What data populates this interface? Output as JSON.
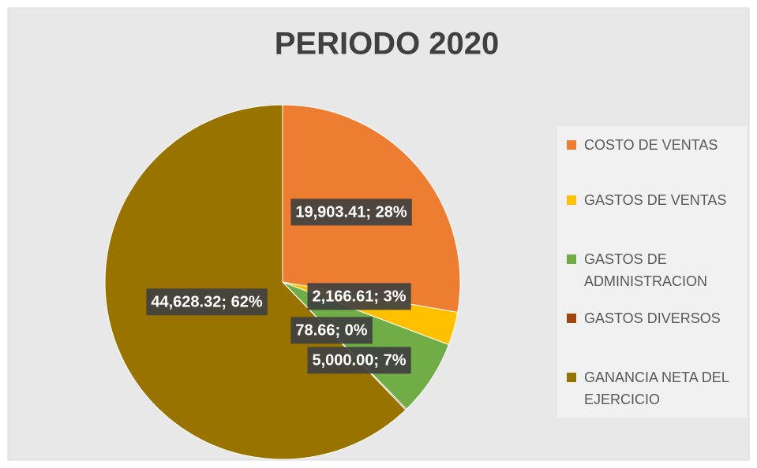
{
  "chart_data": {
    "type": "pie",
    "title": "PERIODO 2020",
    "categories": [
      "COSTO DE VENTAS",
      "GASTOS DE VENTAS",
      "GASTOS DE ADMINISTRACION",
      "GASTOS DIVERSOS",
      "GANANCIA NETA DEL EJERCICIO"
    ],
    "values": [
      19903.41,
      2166.61,
      5000.0,
      78.66,
      44628.32
    ],
    "value_labels": [
      "19,903.41; 28%",
      "2,166.61; 3%",
      "5,000.00; 7%",
      "78.66; 0%",
      "44,628.32; 62%"
    ],
    "colors": [
      "#ED7D31",
      "#FFC000",
      "#70AD47",
      "#9E480E",
      "#997300"
    ],
    "legend": "right"
  }
}
